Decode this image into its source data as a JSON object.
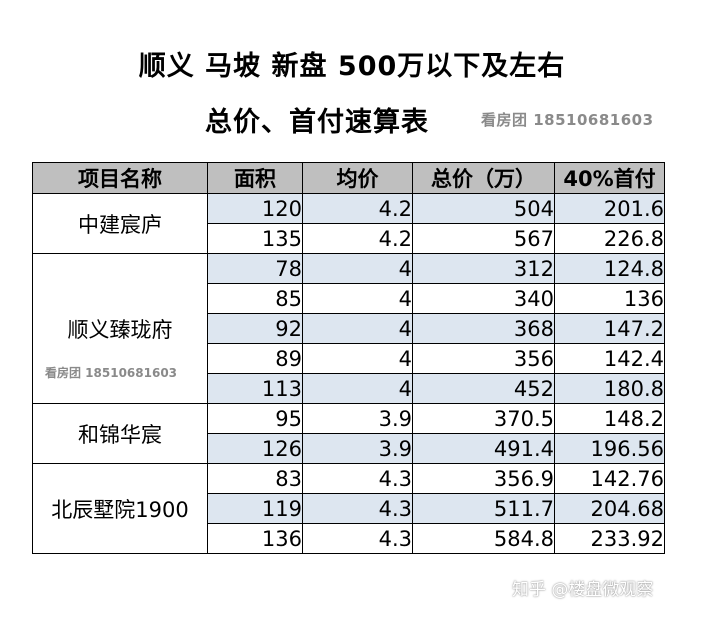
{
  "title": {
    "line1": "顺义  马坡  新盘  500万以下及左右",
    "line2": "总价、首付速算表",
    "watermark": "看房团  18510681603"
  },
  "table": {
    "headers": [
      "项目名称",
      "面积",
      "均价",
      "总价（万）",
      "40%首付"
    ],
    "groups": [
      {
        "name": "中建宸庐",
        "rows": [
          [
            "120",
            "4.2",
            "504",
            "201.6"
          ],
          [
            "135",
            "4.2",
            "567",
            "226.8"
          ]
        ]
      },
      {
        "name": "顺义臻珑府",
        "watermark": "看房团  18510681603",
        "rows": [
          [
            "78",
            "4",
            "312",
            "124.8"
          ],
          [
            "85",
            "4",
            "340",
            "136"
          ],
          [
            "92",
            "4",
            "368",
            "147.2"
          ],
          [
            "89",
            "4",
            "356",
            "142.4"
          ],
          [
            "113",
            "4",
            "452",
            "180.8"
          ]
        ]
      },
      {
        "name": "和锦华宸",
        "rows": [
          [
            "95",
            "3.9",
            "370.5",
            "148.2"
          ],
          [
            "126",
            "3.9",
            "491.4",
            "196.56"
          ]
        ]
      },
      {
        "name": "北辰墅院1900",
        "rows": [
          [
            "83",
            "4.3",
            "356.9",
            "142.76"
          ],
          [
            "119",
            "4.3",
            "511.7",
            "204.68"
          ],
          [
            "136",
            "4.3",
            "584.8",
            "233.92"
          ]
        ]
      }
    ]
  },
  "footer_watermark": "知乎 @楼盘微观察",
  "colors": {
    "header_bg": "#bfbfbf",
    "row_shade": "#dde6f0",
    "watermark": "#8a8a8a"
  }
}
